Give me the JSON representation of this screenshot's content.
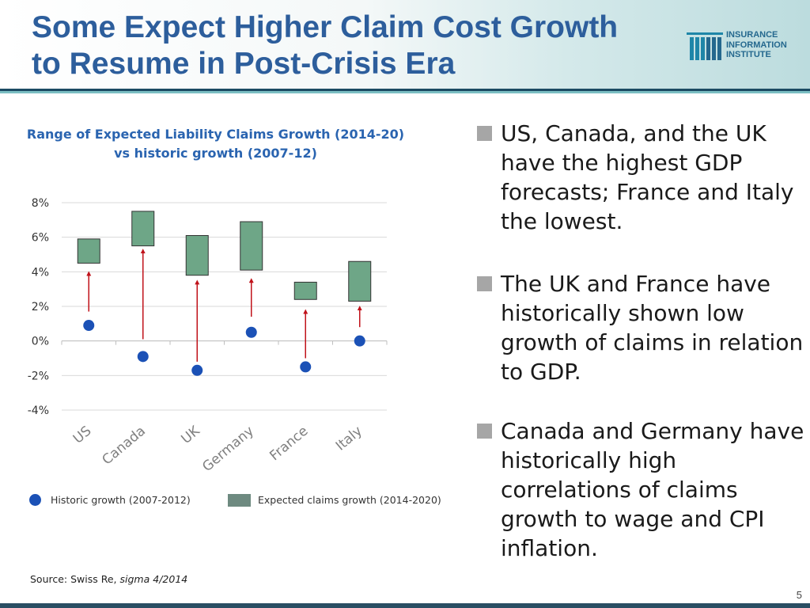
{
  "slide": {
    "title_line1": "Some Expect Higher Claim Cost Growth",
    "title_line2": "to Resume in Post-Crisis Era",
    "page_number": "5"
  },
  "logo": {
    "line1": "INSURANCE",
    "line2": "INFORMATION",
    "line3": "INSTITUTE"
  },
  "chart_data": {
    "type": "floating-bar-with-markers",
    "title": "Range of Expected Liability Claims Growth (2014-20) vs historic growth (2007-12)",
    "categories": [
      "US",
      "Canada",
      "UK",
      "Germany",
      "France",
      "Italy"
    ],
    "y_ticks": [
      "8%",
      "6%",
      "4%",
      "2%",
      "0%",
      "-2%",
      "-4%"
    ],
    "ylim": [
      -4,
      8
    ],
    "grid": true,
    "series": [
      {
        "name": "Historic growth (2007-2012)",
        "kind": "point",
        "values": [
          0.9,
          -0.9,
          -1.7,
          0.5,
          -1.5,
          0.0
        ]
      },
      {
        "name": "Expected claims growth (2014-2020)",
        "kind": "range",
        "low": [
          4.5,
          5.5,
          3.8,
          4.1,
          2.4,
          2.3
        ],
        "high": [
          5.9,
          7.5,
          6.1,
          6.9,
          3.4,
          4.6
        ]
      }
    ],
    "arrows": {
      "color": "#c0121a",
      "from": [
        1.7,
        0.1,
        -1.2,
        1.4,
        -1.0,
        0.8
      ],
      "to": [
        3.9,
        5.2,
        3.4,
        3.5,
        1.7,
        1.9
      ]
    },
    "colors": {
      "range_fill": "#6ea687",
      "range_stroke": "#333333",
      "point": "#1b51b6",
      "grid": "#d9d9d9",
      "tick_text": "#333333",
      "category_text": "#7f7f7f"
    },
    "legend": {
      "historic_label": "Historic growth (2007-2012)",
      "expected_label": "Expected claims growth (2014-2020)"
    }
  },
  "source": {
    "prefix": "Source: Swiss Re, ",
    "publication": "sigma 4/2014"
  },
  "bullets": [
    {
      "text": "US, Canada, and the UK have the highest GDP forecasts; France and Italy the lowest."
    },
    {
      "text": "The UK and France have historically shown low growth of claims in relation to GDP."
    },
    {
      "text": "Canada and Germany have historically high correlations of claims growth to wage and CPI inflation."
    }
  ]
}
